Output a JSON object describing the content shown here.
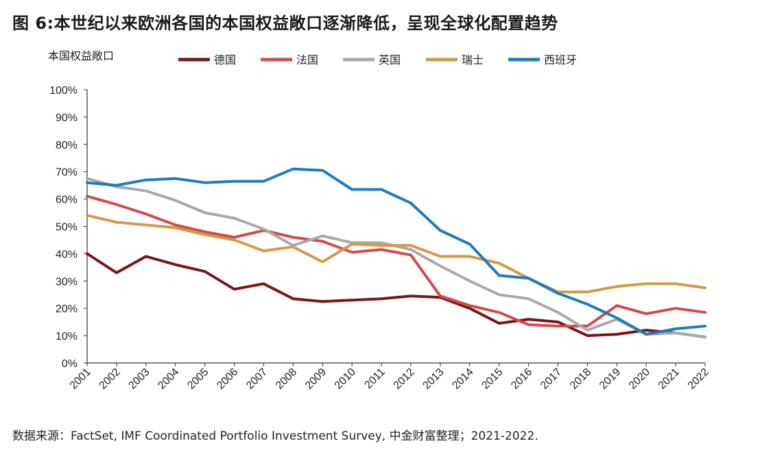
{
  "title": "图 6:本世纪以来欧洲各国的本国权益敞口逐渐降低，呈现全球化配置趋势",
  "source": "数据来源：FactSet, IMF Coordinated Portfolio Investment Survey, 中金财富整理；2021-2022.",
  "chart_data": {
    "type": "line",
    "title": "图 6:本世纪以来欧洲各国的本国权益敞口逐渐降低，呈现全球化配置趋势",
    "ylabel": "本国权益敞口",
    "xlabel": "",
    "ylim": [
      0,
      100
    ],
    "yticks": [
      "0%",
      "10%",
      "20%",
      "30%",
      "40%",
      "50%",
      "60%",
      "70%",
      "80%",
      "90%",
      "100%"
    ],
    "grid": false,
    "legend_position": "top",
    "x": [
      "2001",
      "2002",
      "2003",
      "2004",
      "2005",
      "2006",
      "2007",
      "2008",
      "2009",
      "2010",
      "2011",
      "2012",
      "2013",
      "2014",
      "2015",
      "2016",
      "2017",
      "2018",
      "2019",
      "2020",
      "2021",
      "2022"
    ],
    "series": [
      {
        "name": "德国",
        "color": "#7a1517",
        "values": [
          40,
          33,
          39,
          36,
          33.5,
          27,
          29,
          23.5,
          22.5,
          23,
          23.5,
          24.5,
          24,
          20,
          14.5,
          16,
          15,
          10,
          10.5,
          12,
          11,
          9.5
        ]
      },
      {
        "name": "法国",
        "color": "#d24a4a",
        "values": [
          61,
          58,
          54.5,
          50.5,
          48,
          46,
          48.5,
          46,
          44.5,
          40.5,
          41.5,
          39.5,
          24.5,
          21,
          18.5,
          14,
          13.5,
          13.5,
          21,
          18,
          20,
          18.5
        ]
      },
      {
        "name": "英国",
        "color": "#a9a9a9",
        "values": [
          67.5,
          64.5,
          63,
          59.5,
          55,
          53,
          49,
          43,
          46.5,
          44,
          44,
          41.5,
          35.5,
          30,
          25,
          23.5,
          18.5,
          12,
          16,
          10.5,
          11,
          9.5
        ]
      },
      {
        "name": "瑞士",
        "color": "#d49a45",
        "values": [
          54,
          51.5,
          50.5,
          49.5,
          47,
          45,
          41,
          42.5,
          37,
          43.5,
          43,
          43,
          39,
          39,
          36.5,
          31,
          26,
          26,
          28,
          29,
          29,
          27.5
        ]
      },
      {
        "name": "西班牙",
        "color": "#1e7ac2",
        "values": [
          66,
          65,
          67,
          67.5,
          66,
          66.5,
          66.5,
          71,
          70.5,
          63.5,
          63.5,
          58.5,
          48.5,
          43.5,
          32,
          31,
          25.5,
          21.5,
          16.5,
          10.5,
          12.5,
          13.5
        ]
      }
    ]
  }
}
